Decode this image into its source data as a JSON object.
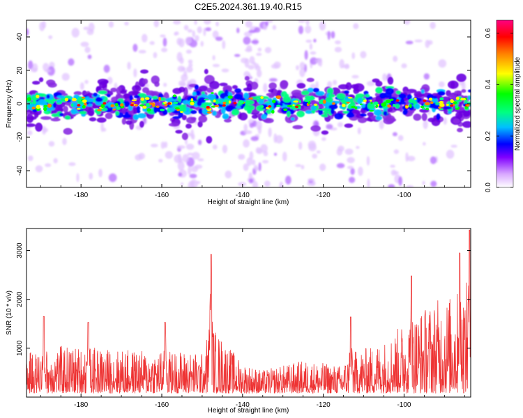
{
  "figure": {
    "title": "C2E5.2024.361.19.40.R15"
  },
  "chart_data": [
    {
      "type": "heatmap",
      "xlabel": "Height of straight line (km)",
      "ylabel": "Frequency (Hz)",
      "xlim": [
        -193.5,
        -83.5
      ],
      "ylim": [
        -50,
        50
      ],
      "x_ticks": [
        -180,
        -160,
        -140,
        -120,
        -100
      ],
      "y_ticks": [
        -40,
        -20,
        0,
        20,
        40
      ],
      "colorbar": {
        "label": "Normalized spectral amplitude",
        "range": [
          0,
          0.65
        ],
        "ticks": [
          0.0,
          0.2,
          0.4,
          0.6
        ],
        "colors": [
          "#ffffff",
          "#d9a8ff",
          "#8000ff",
          "#0000ff",
          "#00c0ff",
          "#00ff80",
          "#00ff00",
          "#ffff00",
          "#ff8000",
          "#ff0000",
          "#ff0080"
        ]
      },
      "band": {
        "center_hz": 0,
        "half_width_hz": 8
      },
      "vertical_streaks_km": [
        -153,
        -137,
        -122
      ]
    },
    {
      "type": "line",
      "xlabel": "Height of straight line (km)",
      "ylabel": "SNR (10 * v/v)",
      "xlim": [
        -193.5,
        -83.5
      ],
      "ylim": [
        0,
        3450
      ],
      "x_ticks": [
        -180,
        -160,
        -140,
        -120,
        -100
      ],
      "y_ticks": [
        1000,
        2000,
        3000
      ],
      "color": "#ee3333",
      "envelope": {
        "x": [
          -193.5,
          -185,
          -175,
          -165,
          -155,
          -150,
          -148,
          -145,
          -140,
          -135,
          -130,
          -125,
          -120,
          -116,
          -112,
          -108,
          -104,
          -100,
          -96,
          -92,
          -88,
          -85,
          -83.5
        ],
        "y": [
          900,
          1050,
          1000,
          950,
          950,
          900,
          1500,
          1200,
          700,
          550,
          650,
          750,
          700,
          650,
          950,
          1050,
          1200,
          1550,
          1800,
          2000,
          2100,
          2300,
          2500
        ]
      },
      "peaks": [
        {
          "x": -147.8,
          "y": 2920
        },
        {
          "x": -189.2,
          "y": 1650
        },
        {
          "x": -178.2,
          "y": 1530
        },
        {
          "x": -159.2,
          "y": 1530
        },
        {
          "x": -113.2,
          "y": 1640
        },
        {
          "x": -98.2,
          "y": 2480
        },
        {
          "x": -86.2,
          "y": 2950
        },
        {
          "x": -83.8,
          "y": 3420
        }
      ]
    }
  ]
}
